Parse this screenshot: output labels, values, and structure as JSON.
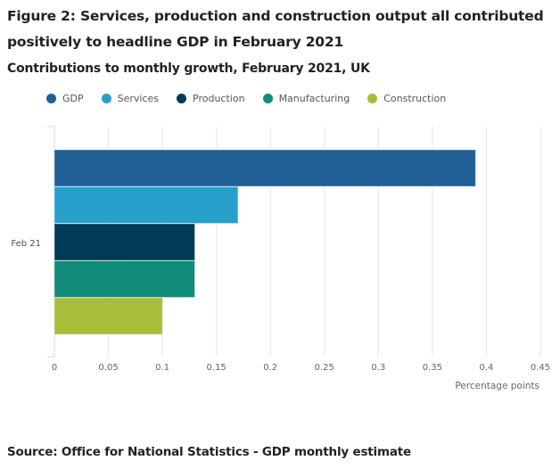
{
  "header": {
    "title": "Figure 2: Services, production and construction output all contributed positively to headline GDP in February 2021",
    "subtitle": "Contributions to monthly growth, February 2021, UK"
  },
  "footer": {
    "source": "Source: Office for National Statistics - GDP monthly estimate"
  },
  "chart_data": {
    "type": "bar",
    "orientation": "horizontal",
    "title": "Contributions to monthly growth, February 2021, UK",
    "categories": [
      "Feb 21"
    ],
    "series": [
      {
        "name": "GDP",
        "color": "#206095",
        "values": [
          0.39
        ]
      },
      {
        "name": "Services",
        "color": "#27a0cc",
        "values": [
          0.17
        ]
      },
      {
        "name": "Production",
        "color": "#003c57",
        "values": [
          0.13
        ]
      },
      {
        "name": "Manufacturing",
        "color": "#118c7b",
        "values": [
          0.13
        ]
      },
      {
        "name": "Construction",
        "color": "#a8bd3a",
        "values": [
          0.1
        ]
      }
    ],
    "xlabel": "Percentage points",
    "ylabel": "",
    "xlim": [
      0,
      0.45
    ],
    "xticks": [
      "0",
      "0.05",
      "0.1",
      "0.15",
      "0.2",
      "0.25",
      "0.3",
      "0.35",
      "0.4",
      "0.45"
    ],
    "xtick_values": [
      0,
      0.05,
      0.1,
      0.15,
      0.2,
      0.25,
      0.3,
      0.35,
      0.4,
      0.45
    ],
    "grid": true,
    "legend_position": "top-left"
  }
}
